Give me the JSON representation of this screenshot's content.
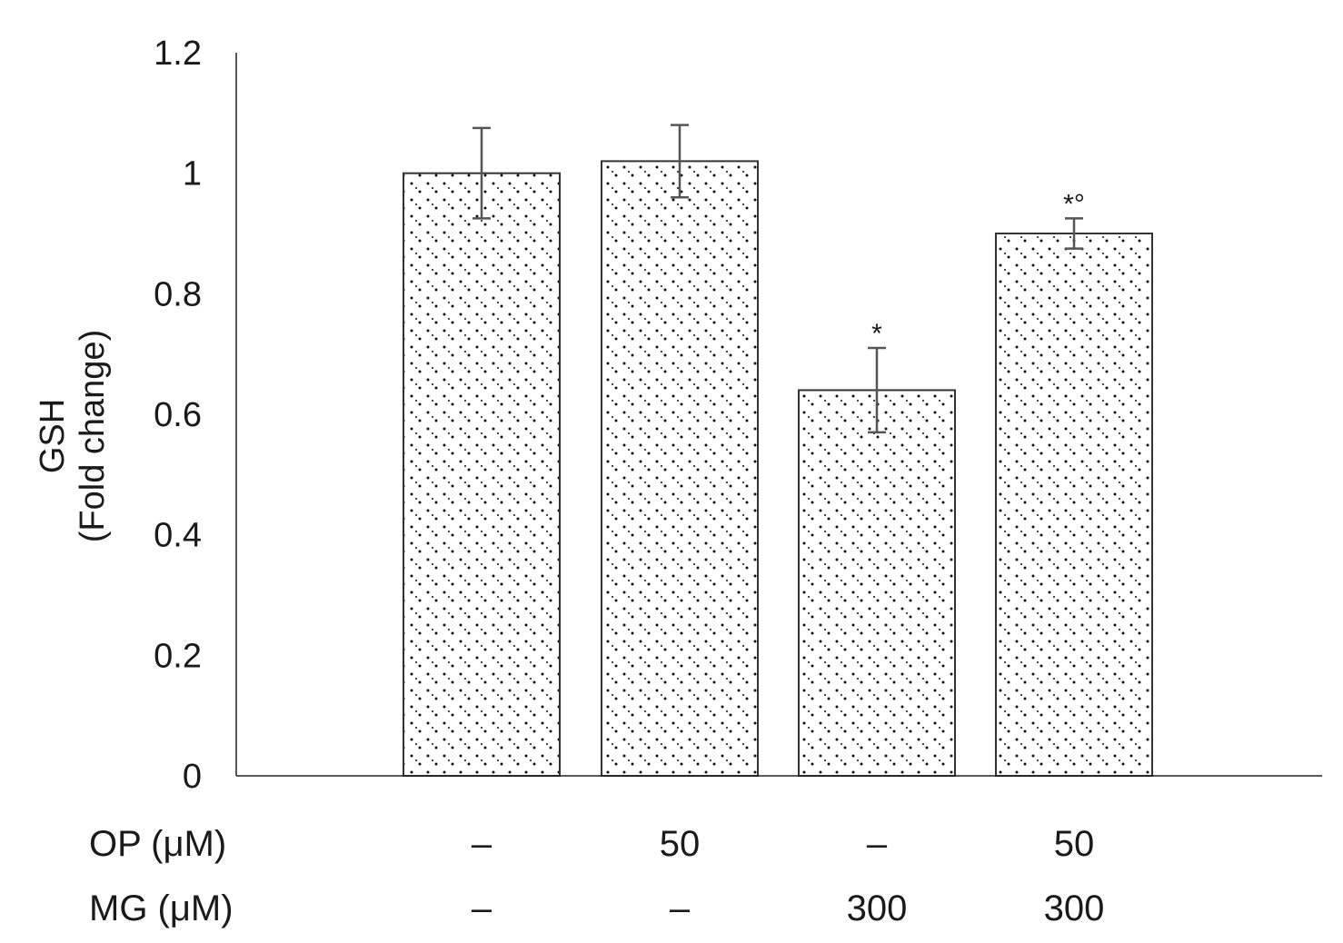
{
  "chart_data": {
    "type": "bar",
    "title": "",
    "ylabel_lines": [
      "GSH",
      "(Fold change)"
    ],
    "ylim": [
      0,
      1.2
    ],
    "yticks": [
      "0",
      "0.2",
      "0.4",
      "0.6",
      "0.8",
      "1",
      "1.2"
    ],
    "grid": false,
    "legend": "none",
    "bar_fill": "dotted pattern",
    "colors": {
      "bar_stroke": "#333333",
      "axis": "#222222",
      "error_bar": "#555555",
      "dots": "#111111"
    },
    "categories": [
      "OP– MG–",
      "OP50 MG–",
      "OP– MG300",
      "OP50 MG300"
    ],
    "values": [
      1.0,
      1.02,
      0.64,
      0.9
    ],
    "errors": [
      0.075,
      0.06,
      0.07,
      0.025
    ],
    "annotations": [
      "",
      "",
      "*",
      "*°"
    ],
    "condition_rows": [
      {
        "label": "OP (μM)",
        "values": [
          "–",
          "50",
          "–",
          "50"
        ]
      },
      {
        "label": "MG (μM)",
        "values": [
          "–",
          "–",
          "300",
          "300"
        ]
      }
    ]
  }
}
